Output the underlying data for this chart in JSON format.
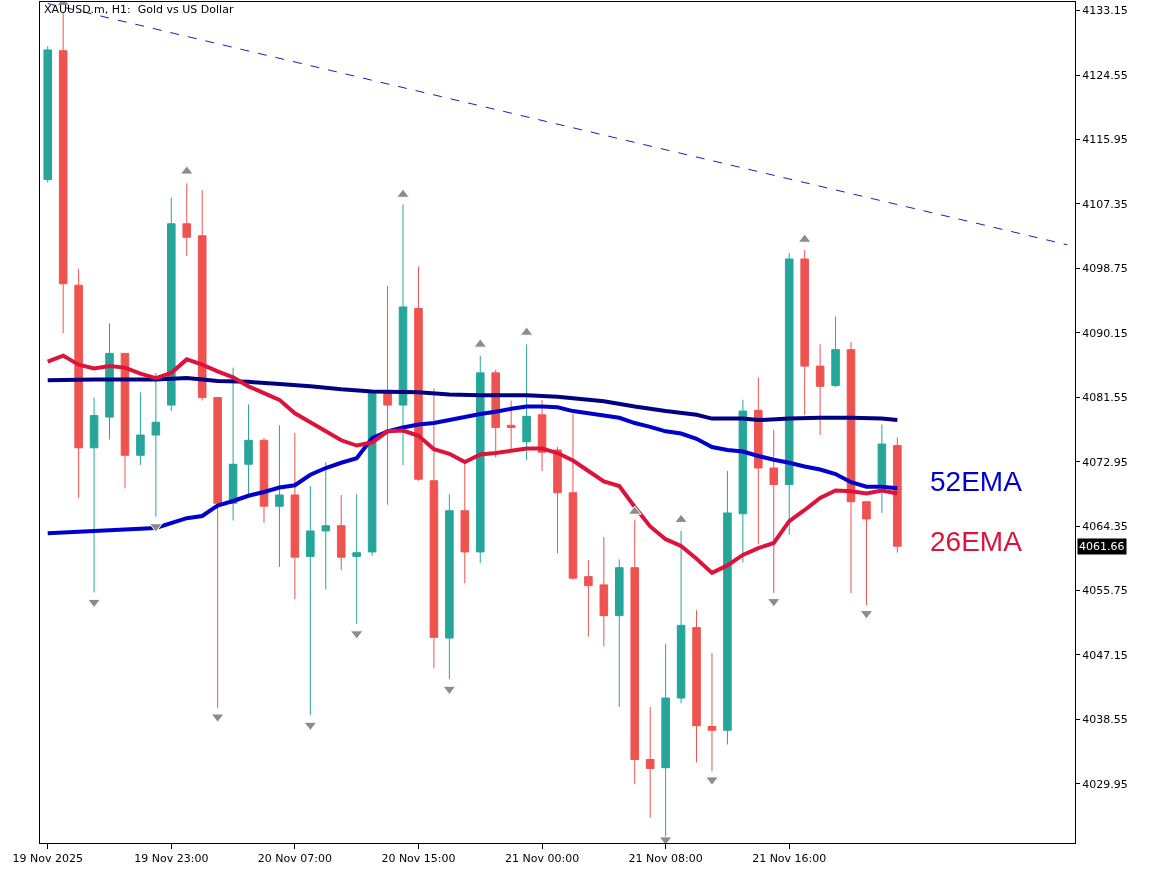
{
  "chart_data": {
    "type": "candlestick",
    "title": "XAUUSD.m, H1:  Gold vs US Dollar",
    "categories": [
      "19 Nov 2025",
      null,
      null,
      null,
      null,
      null,
      null,
      null,
      "19 Nov 23:00",
      null,
      null,
      null,
      null,
      null,
      null,
      null,
      "20 Nov 07:00",
      null,
      null,
      null,
      null,
      null,
      null,
      null,
      "20 Nov 15:00",
      null,
      null,
      null,
      null,
      null,
      null,
      null,
      "21 Nov 00:00",
      null,
      null,
      null,
      null,
      null,
      null,
      null,
      "21 Nov 08:00",
      null,
      null,
      null,
      null,
      null,
      null,
      null,
      "21 Nov 16:00",
      null,
      null,
      null,
      null,
      null,
      null,
      null,
      null,
      null,
      null,
      null,
      null,
      null,
      null,
      null,
      null,
      null,
      null
    ],
    "ylim": [
      4022.05,
      4134.3
    ],
    "yticks": [
      4029.95,
      4038.55,
      4047.15,
      4055.75,
      4064.35,
      4072.95,
      4081.55,
      4090.15,
      4098.75,
      4107.35,
      4115.95,
      4124.55,
      4133.15
    ],
    "annotations": [
      "4061.66"
    ],
    "series": [
      {
        "ohlc": [
          [
            4110.6,
            4128.4,
            4110.2,
            4127.9
          ],
          [
            4127.8,
            4133.0,
            4090.1,
            4096.7
          ],
          [
            4096.5,
            4098.7,
            4068.1,
            4074.8
          ],
          [
            4074.8,
            4081.5,
            4055.5,
            4079.1
          ],
          [
            4078.9,
            4091.4,
            4075.9,
            4087.4
          ],
          [
            4087.4,
            4087.4,
            4069.4,
            4073.8
          ],
          [
            4073.8,
            4082.2,
            4072.5,
            4076.5
          ],
          [
            4076.5,
            4084.8,
            4065.6,
            4078.2
          ],
          [
            4080.5,
            4108.2,
            4079.7,
            4104.7
          ],
          [
            4104.7,
            4110.1,
            4100.4,
            4102.9
          ],
          [
            4103.1,
            4109.2,
            4081.1,
            4081.5
          ],
          [
            4081.5,
            4081.5,
            4040.1,
            4067.4
          ],
          [
            4067.4,
            4085.5,
            4065.1,
            4072.6
          ],
          [
            4072.6,
            4080.6,
            4068.4,
            4075.8
          ],
          [
            4075.8,
            4076.1,
            4064.8,
            4067.0
          ],
          [
            4067.0,
            4077.8,
            4058.9,
            4068.5
          ],
          [
            4068.5,
            4076.8,
            4054.6,
            4060.2
          ],
          [
            4060.3,
            4069.7,
            4039.1,
            4063.7
          ],
          [
            4063.7,
            4072.9,
            4055.9,
            4064.4
          ],
          [
            4064.4,
            4068.5,
            4058.5,
            4060.2
          ],
          [
            4060.3,
            4068.6,
            4051.3,
            4060.8
          ],
          [
            4060.9,
            4082.4,
            4060.4,
            4082.1
          ],
          [
            4082.1,
            4096.4,
            4067.2,
            4080.5
          ],
          [
            4080.5,
            4107.3,
            4072.5,
            4093.6
          ],
          [
            4093.4,
            4099.0,
            4070.4,
            4070.6
          ],
          [
            4070.4,
            4082.7,
            4045.4,
            4049.5
          ],
          [
            4049.4,
            4068.6,
            4043.9,
            4066.4
          ],
          [
            4066.4,
            4072.8,
            4056.7,
            4060.9
          ],
          [
            4060.9,
            4087.1,
            4059.4,
            4084.8
          ],
          [
            4084.8,
            4085.2,
            4073.5,
            4077.5
          ],
          [
            4077.8,
            4081.1,
            4074.6,
            4077.5
          ],
          [
            4075.6,
            4088.6,
            4073.2,
            4079.0
          ],
          [
            4079.2,
            4081.2,
            4071.7,
            4074.2
          ],
          [
            4074.5,
            4074.9,
            4060.7,
            4068.8
          ],
          [
            4068.8,
            4079.3,
            4057.2,
            4057.4
          ],
          [
            4057.6,
            4059.8,
            4049.6,
            4056.4
          ],
          [
            4056.5,
            4062.9,
            4048.3,
            4052.4
          ],
          [
            4052.4,
            4059.9,
            4040.2,
            4058.8
          ],
          [
            4058.8,
            4065.2,
            4029.9,
            4033.2
          ],
          [
            4033.2,
            4040.2,
            4025.4,
            4032.0
          ],
          [
            4032.1,
            4048.6,
            4022.8,
            4041.4
          ],
          [
            4041.4,
            4063.7,
            4040.7,
            4051.1
          ],
          [
            4050.8,
            4053.1,
            4032.8,
            4037.7
          ],
          [
            4037.6,
            4047.4,
            4031.6,
            4037.1
          ],
          [
            4037.1,
            4071.7,
            4035.2,
            4066.1
          ],
          [
            4066.0,
            4081.2,
            4059.5,
            4079.7
          ],
          [
            4079.8,
            4084.2,
            4061.9,
            4072.1
          ],
          [
            4072.1,
            4077.2,
            4055.4,
            4069.9
          ],
          [
            4069.9,
            4100.8,
            4063.2,
            4100.0
          ],
          [
            4100.0,
            4101.2,
            4079.2,
            4085.7
          ],
          [
            4085.7,
            4088.6,
            4076.5,
            4083.0
          ],
          [
            4083.1,
            4092.3,
            4082.9,
            4087.9
          ],
          [
            4087.9,
            4088.9,
            4055.4,
            4067.6
          ],
          [
            4067.6,
            4067.6,
            4053.8,
            4065.3
          ],
          [
            4069.6,
            4077.9,
            4066.1,
            4075.3
          ],
          [
            4075.1,
            4076.2,
            4060.8,
            4061.66
          ],
          null,
          null,
          null,
          null,
          null,
          null,
          null,
          null,
          null,
          null,
          null
        ],
        "colors": [
          "#26a69a",
          "#ef5350",
          "#ef5350",
          "#26a69a",
          "#26a69a",
          "#ef5350",
          "#26a69a",
          "#26a69a",
          "#26a69a",
          "#ef5350",
          "#ef5350",
          "#ef5350",
          "#26a69a",
          "#26a69a",
          "#ef5350",
          "#26a69a",
          "#ef5350",
          "#26a69a",
          "#26a69a",
          "#ef5350",
          "#26a69a",
          "#26a69a",
          "#ef5350",
          "#26a69a",
          "#ef5350",
          "#ef5350",
          "#26a69a",
          "#ef5350",
          "#26a69a",
          "#ef5350",
          "#ef5350",
          "#26a69a",
          "#ef5350",
          "#ef5350",
          "#ef5350",
          "#ef5350",
          "#ef5350",
          "#26a69a",
          "#ef5350",
          "#ef5350",
          "#26a69a",
          "#26a69a",
          "#ef5350",
          "#ef5350",
          "#26a69a",
          "#26a69a",
          "#ef5350",
          "#ef5350",
          "#26a69a",
          "#ef5350",
          "#ef5350",
          "#26a69a",
          "#ef5350",
          "#ef5350",
          "#26a69a",
          "#ef5350",
          null,
          null,
          null,
          null,
          null,
          null,
          null,
          null,
          null,
          null,
          null
        ]
      },
      {
        "type": "line",
        "color": "#000080",
        "values": [
          4083.8,
          null,
          null,
          4083.9,
          null,
          4083.9,
          null,
          4083.9,
          null,
          4084.1,
          null,
          4083.7,
          null,
          4083.6,
          null,
          4083.3,
          null,
          4083.0,
          null,
          4082.6,
          null,
          4082.3,
          null,
          null,
          4082.2,
          null,
          4081.9,
          null,
          4081.8,
          null,
          null,
          4081.8,
          null,
          4081.6,
          4081.4,
          null,
          4081.0,
          null,
          4080.3,
          null,
          4079.7,
          null,
          4079.2,
          4078.7,
          null,
          4078.7,
          4078.5,
          null,
          4078.7,
          null,
          4078.8,
          null,
          4078.8,
          null,
          4078.7,
          4078.5,
          null,
          null,
          null,
          null,
          null,
          null,
          null,
          null,
          null,
          null,
          null
        ]
      },
      {
        "type": "line",
        "name": "52EMA",
        "color": "#0000cd",
        "values": [
          4063.4,
          null,
          null,
          4063.7,
          null,
          4063.9,
          null,
          4064.1,
          null,
          4065.4,
          4065.7,
          4067.1,
          4067.7,
          4068.4,
          4068.9,
          4069.5,
          4069.8,
          4071.2,
          4072.1,
          4072.8,
          4073.4,
          4076.1,
          4077.0,
          4077.5,
          4077.9,
          4078.1,
          4078.5,
          4078.9,
          4079.3,
          4079.6,
          4080.0,
          4080.3,
          4080.3,
          4080.2,
          4079.7,
          4079.4,
          4079.1,
          4078.8,
          4078.1,
          4077.6,
          4077.0,
          4076.7,
          4076.0,
          4074.9,
          4074.5,
          4074.3,
          4073.7,
          4073.2,
          4072.8,
          4072.3,
          4071.9,
          4071.3,
          4070.2,
          4069.6,
          4069.6,
          4069.4,
          null,
          null,
          null,
          null,
          null,
          null,
          null,
          null,
          null,
          null,
          null
        ]
      },
      {
        "type": "line",
        "name": "26EMA",
        "color": "#dc143c",
        "values": [
          4086.3,
          4087.1,
          4085.9,
          4085.4,
          4085.7,
          4085.5,
          4084.7,
          4084.1,
          4084.8,
          4086.6,
          4085.9,
          4085.0,
          4084.2,
          4083.0,
          4082.1,
          4081.2,
          4079.4,
          4078.2,
          4077.0,
          4075.8,
          4075.1,
          4075.5,
          4077.0,
          4077.1,
          4076.4,
          4074.6,
          4074.0,
          4072.9,
          4073.9,
          4074.1,
          4074.4,
          4074.7,
          4074.7,
          4074.1,
          4073.1,
          4071.7,
          4070.3,
          4069.7,
          4066.9,
          4064.3,
          4062.6,
          4061.7,
          4060.0,
          4058.1,
          4059.1,
          4060.5,
          4061.4,
          4062.1,
          4065.0,
          4066.5,
          4068.1,
          4069.1,
          4069.0,
          4068.7,
          4069.1,
          4068.7,
          null,
          null,
          null,
          null,
          null,
          null,
          null,
          null,
          null,
          null,
          null
        ]
      },
      {
        "type": "line",
        "color": "#1c1cb4",
        "line_style": "dashed",
        "values": [
          4134.1,
          null,
          null,
          null,
          null,
          null,
          null,
          null,
          null,
          null,
          null,
          null,
          null,
          null,
          null,
          null,
          null,
          null,
          null,
          null,
          null,
          null,
          null,
          null,
          null,
          null,
          null,
          null,
          null,
          null,
          null,
          null,
          null,
          null,
          null,
          null,
          null,
          null,
          null,
          null,
          null,
          null,
          null,
          null,
          null,
          null,
          null,
          null,
          null,
          null,
          null,
          null,
          null,
          null,
          null,
          null,
          null,
          null,
          null,
          null,
          null,
          null,
          null,
          null,
          null,
          null,
          4101.9
        ]
      },
      {
        "type": "scatter",
        "color": "#8c8c8c",
        "marker": "triangle",
        "values": [
          null,
          4134.2,
          null,
          null,
          null,
          null,
          null,
          null,
          null,
          4111.7,
          null,
          null,
          null,
          null,
          null,
          null,
          null,
          null,
          null,
          null,
          null,
          null,
          null,
          4108.6,
          null,
          null,
          null,
          null,
          4088.6,
          null,
          null,
          4090.2,
          null,
          null,
          null,
          null,
          null,
          null,
          4066.3,
          null,
          null,
          4065.2,
          null,
          null,
          null,
          null,
          null,
          null,
          null,
          4102.6,
          null,
          null,
          null,
          null,
          null,
          null,
          null,
          null,
          null,
          null,
          null,
          null,
          null,
          null,
          null,
          null,
          null
        ]
      },
      {
        "type": "scatter",
        "color": "#8c8c8c",
        "marker": "triangle",
        "values": [
          null,
          null,
          null,
          4054.2,
          null,
          null,
          null,
          4064.3,
          null,
          null,
          null,
          4038.9,
          null,
          null,
          null,
          null,
          null,
          4037.8,
          null,
          null,
          4050.0,
          null,
          null,
          null,
          null,
          null,
          4042.6,
          null,
          null,
          null,
          null,
          null,
          null,
          null,
          null,
          null,
          null,
          null,
          null,
          null,
          4022.5,
          null,
          null,
          4030.5,
          null,
          null,
          null,
          4054.3,
          null,
          null,
          null,
          null,
          null,
          4052.7,
          null,
          null,
          null,
          null,
          null,
          null,
          null,
          null,
          null,
          null,
          null,
          null,
          null
        ]
      }
    ]
  }
}
